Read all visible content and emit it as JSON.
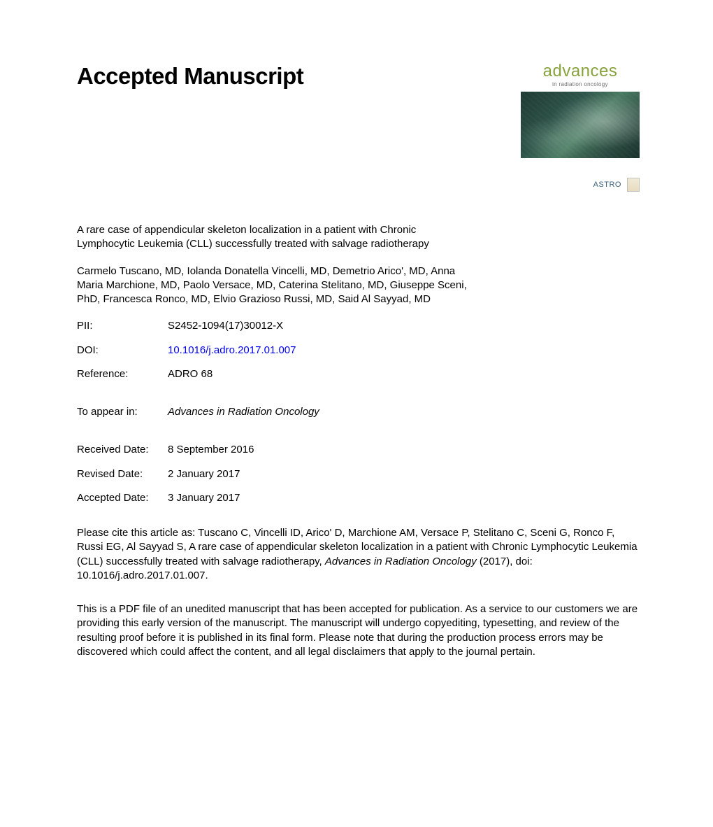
{
  "heading": "Accepted Manuscript",
  "cover": {
    "title": "advances",
    "subtitle": "in radiation oncology",
    "footer_label": "ASTRO"
  },
  "article_title": "A rare case of appendicular skeleton localization in a patient with Chronic Lymphocytic Leukemia (CLL) successfully treated with salvage radiotherapy",
  "authors": "Carmelo Tuscano, MD, Iolanda Donatella Vincelli, MD, Demetrio Arico', MD, Anna Maria Marchione, MD, Paolo Versace, MD, Caterina Stelitano, MD, Giuseppe Sceni, PhD, Francesca Ronco, MD, Elvio Grazioso Russi, MD, Said Al Sayyad, MD",
  "meta": {
    "pii_label": "PII:",
    "pii_value": "S2452-1094(17)30012-X",
    "doi_label": "DOI:",
    "doi_value": "10.1016/j.adro.2017.01.007",
    "ref_label": "Reference:",
    "ref_value": "ADRO 68",
    "appear_label": "To appear in:",
    "appear_value": "Advances in Radiation Oncology",
    "received_label": "Received Date:",
    "received_value": "8 September 2016",
    "revised_label": "Revised Date:",
    "revised_value": "2 January 2017",
    "accepted_label": "Accepted Date:",
    "accepted_value": "3 January 2017"
  },
  "citation": {
    "prefix": "Please cite this article as: Tuscano C, Vincelli ID, Arico' D, Marchione AM, Versace P, Stelitano C, Sceni G, Ronco F, Russi EG, Al Sayyad S, A rare case of appendicular skeleton localization in a patient with Chronic Lymphocytic Leukemia (CLL) successfully treated with salvage radiotherapy, ",
    "journal": "Advances in Radiation Oncology",
    "suffix": " (2017), doi: 10.1016/j.adro.2017.01.007."
  },
  "disclaimer": "This is a PDF file of an unedited manuscript that has been accepted for publication. As a service to our customers we are providing this early version of the manuscript. The manuscript will undergo copyediting, typesetting, and review of the resulting proof before it is published in its final form. Please note that during the production process errors may be discovered which could affect the content, and all legal disclaimers that apply to the journal pertain.",
  "colors": {
    "text": "#000000",
    "link": "#0000ee",
    "cover_title": "#88a23e",
    "cover_sub": "#6b6b6b",
    "background": "#ffffff"
  },
  "typography": {
    "heading_fontsize": 33,
    "body_fontsize": 15,
    "cover_title_fontsize": 24,
    "cover_sub_fontsize": 8
  }
}
